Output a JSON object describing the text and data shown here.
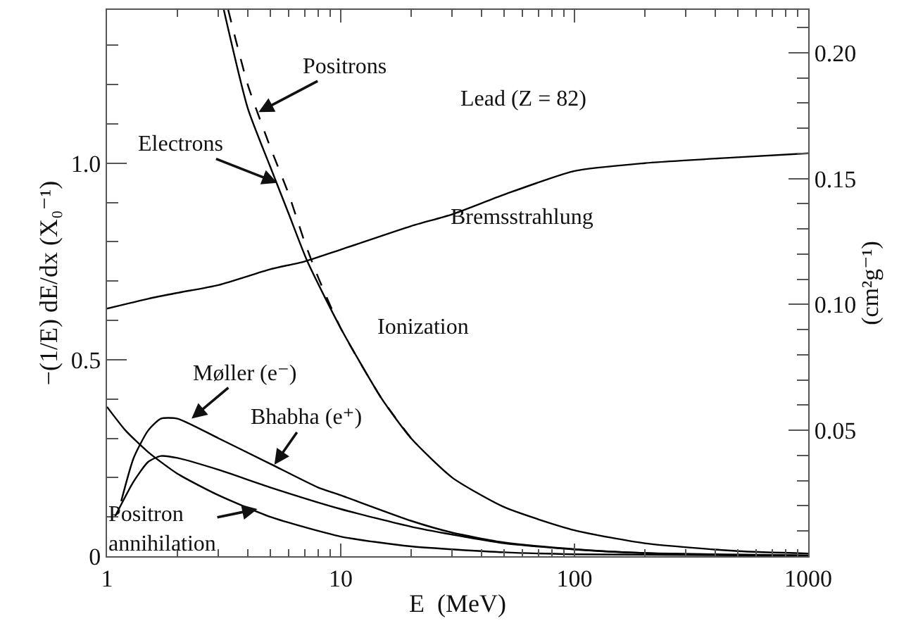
{
  "chart_data": {
    "type": "line",
    "xlabel": "E  (MeV)",
    "ylabel": "−(1/E) dE/dx (X₀⁻¹)",
    "y2label": "(cm²g⁻¹)",
    "log": "x",
    "grid": false,
    "marker": "none",
    "xlim": [
      1,
      1000
    ],
    "xticks": [
      1,
      {
        "value": 2,
        "label": null
      },
      {
        "value": 3,
        "label": null
      },
      {
        "value": 4,
        "label": null
      },
      {
        "value": 5,
        "label": null
      },
      {
        "value": 6,
        "label": null
      },
      {
        "value": 7,
        "label": null
      },
      {
        "value": 8,
        "label": null
      },
      {
        "value": 9,
        "label": null
      },
      10,
      {
        "value": 20,
        "label": null
      },
      {
        "value": 30,
        "label": null
      },
      {
        "value": 40,
        "label": null
      },
      {
        "value": 50,
        "label": null
      },
      {
        "value": 60,
        "label": null
      },
      {
        "value": 70,
        "label": null
      },
      {
        "value": 80,
        "label": null
      },
      {
        "value": 90,
        "label": null
      },
      100,
      {
        "value": 200,
        "label": null
      },
      {
        "value": 300,
        "label": null
      },
      {
        "value": 400,
        "label": null
      },
      {
        "value": 500,
        "label": null
      },
      {
        "value": 600,
        "label": null
      },
      {
        "value": 700,
        "label": null
      },
      {
        "value": 800,
        "label": null
      },
      {
        "value": 900,
        "label": null
      },
      1000
    ],
    "ylim": [
      0,
      1.39
    ],
    "yticks": [
      0,
      {
        "value": 0.1,
        "label": null
      },
      {
        "value": 0.2,
        "label": null
      },
      {
        "value": 0.3,
        "label": null
      },
      {
        "value": 0.4,
        "label": null
      },
      0.5,
      {
        "value": 0.6,
        "label": null
      },
      {
        "value": 0.7,
        "label": null
      },
      {
        "value": 0.8,
        "label": null
      },
      {
        "value": 0.9,
        "label": null
      },
      {
        "value": 1,
        "label": "1.0"
      },
      {
        "value": 1.1,
        "label": null
      },
      {
        "value": 1.2,
        "label": null
      },
      {
        "value": 1.3,
        "label": null
      }
    ],
    "y2lim": [
      0,
      0.217
    ],
    "y2ticks": [
      {
        "value": 0.01,
        "label": null
      },
      {
        "value": 0.02,
        "label": null
      },
      {
        "value": 0.03,
        "label": null
      },
      {
        "value": 0.04,
        "label": null
      },
      0.05,
      {
        "value": 0.06,
        "label": null
      },
      {
        "value": 0.07,
        "label": null
      },
      {
        "value": 0.08,
        "label": null
      },
      {
        "value": 0.09,
        "label": null
      },
      {
        "value": 0.1,
        "label": "0.10"
      },
      {
        "value": 0.11,
        "label": null
      },
      {
        "value": 0.12,
        "label": null
      },
      {
        "value": 0.13,
        "label": null
      },
      {
        "value": 0.14,
        "label": null
      },
      0.15,
      {
        "value": 0.16,
        "label": null
      },
      {
        "value": 0.17,
        "label": null
      },
      {
        "value": 0.18,
        "label": null
      },
      {
        "value": 0.19,
        "label": null
      },
      {
        "value": 0.2,
        "label": "0.20"
      },
      {
        "value": 0.21,
        "label": null
      }
    ],
    "series": [
      {
        "color": "#000000",
        "line_style": "solid",
        "x": [
          1,
          1.5,
          2,
          3,
          5,
          7,
          10,
          20,
          30,
          50,
          100,
          200,
          500,
          1000
        ],
        "values": [
          0.63,
          0.655,
          0.67,
          0.69,
          0.73,
          0.75,
          0.78,
          0.84,
          0.87,
          0.92,
          0.98,
          1.0,
          1.015,
          1.025
        ]
      },
      {
        "color": "#000000",
        "line_style": "solid",
        "x": [
          3.16,
          4,
          5,
          6,
          7.2,
          10,
          15,
          20,
          30,
          50,
          100,
          200,
          500,
          1000
        ],
        "values": [
          1.39,
          1.14,
          0.99,
          0.87,
          0.75,
          0.58,
          0.4,
          0.3,
          0.2,
          0.125,
          0.066,
          0.033,
          0.013,
          0.007
        ]
      },
      {
        "color": "#000000",
        "line_style": "dashed",
        "x": [
          3.3,
          4,
          5,
          6,
          7,
          8,
          10,
          15,
          20
        ],
        "values": [
          1.39,
          1.2,
          1.04,
          0.92,
          0.8,
          0.71,
          0.58,
          0.4,
          0.3
        ]
      },
      {
        "color": "#000000",
        "line_style": "solid",
        "x": [
          1.15,
          1.3,
          1.5,
          1.7,
          2,
          3,
          5,
          8,
          10,
          20,
          30,
          50,
          100,
          200,
          500,
          1000
        ],
        "values": [
          0.14,
          0.25,
          0.32,
          0.35,
          0.35,
          0.3,
          0.235,
          0.175,
          0.155,
          0.09,
          0.06,
          0.035,
          0.018,
          0.008,
          0.003,
          0.002
        ]
      },
      {
        "color": "#000000",
        "line_style": "solid",
        "x": [
          1.08,
          1.3,
          1.5,
          1.7,
          2,
          3,
          5,
          10,
          20,
          30,
          50,
          100,
          200,
          1000
        ],
        "values": [
          0.1,
          0.19,
          0.24,
          0.255,
          0.25,
          0.22,
          0.175,
          0.12,
          0.075,
          0.055,
          0.033,
          0.017,
          0.008,
          0.002
        ]
      },
      {
        "color": "#000000",
        "line_style": "solid",
        "x": [
          1,
          1.2,
          1.5,
          2,
          3,
          5,
          10,
          20,
          50,
          100,
          1000
        ],
        "values": [
          0.38,
          0.32,
          0.265,
          0.21,
          0.155,
          0.1,
          0.05,
          0.025,
          0.01,
          0.005,
          0.001
        ]
      }
    ],
    "annotations": [
      "Lead (Z = 82)",
      {
        "text": "Positrons",
        "x": 4.45,
        "y": 1.13
      },
      {
        "text": "Electrons",
        "x": 5.35,
        "y": 0.95
      },
      {
        "text": "Møller (e⁻)",
        "x": 2.3,
        "y": 0.35
      },
      {
        "text": "Bhabha (e⁺)",
        "x": 5.2,
        "y": 0.233
      },
      {
        "text": "Positron\nannihilation",
        "x": 4.4,
        "y": 0.12
      },
      "Ionization",
      "Bremsstrahlung"
    ]
  }
}
